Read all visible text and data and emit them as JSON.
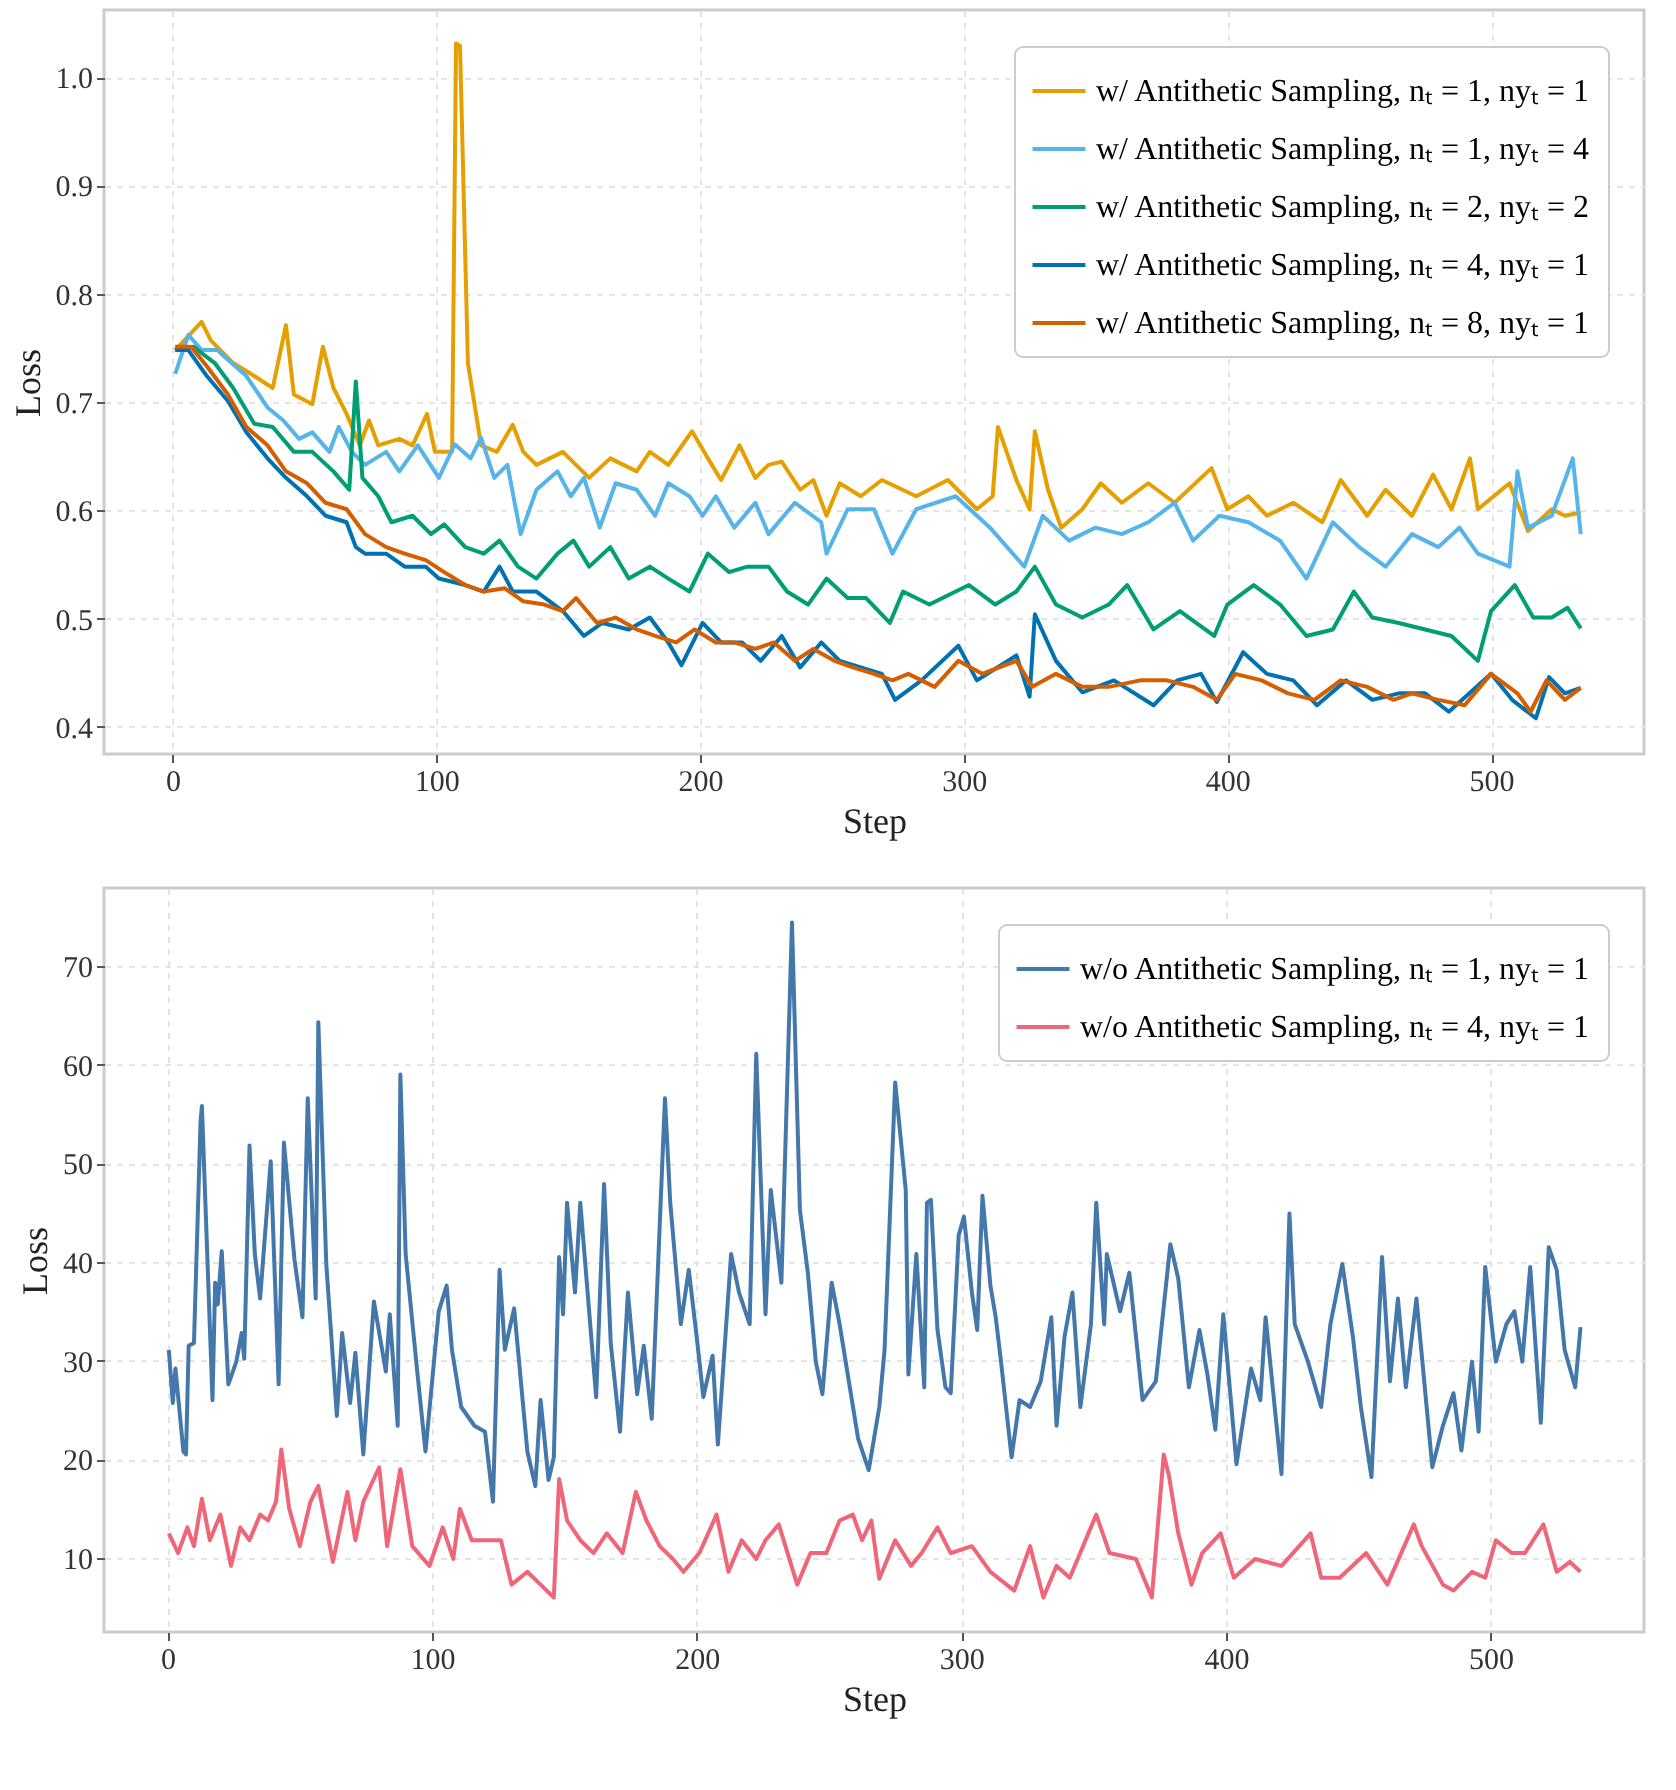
{
  "chart_data": [
    {
      "type": "line",
      "xlabel": "Step",
      "ylabel": "Loss",
      "xlim": [
        -26,
        558
      ],
      "ylim": [
        0.375,
        1.062
      ],
      "xticks": [
        0,
        100,
        200,
        300,
        400,
        500
      ],
      "yticks": [
        0.4,
        0.5,
        0.6,
        0.7,
        0.8,
        0.9,
        {
          "value": 1,
          "label": "1.0"
        }
      ],
      "grid": true,
      "legend": "top right",
      "marker": "none",
      "line_style": "solid",
      "series": [
        {
          "name": "w/ Antithetic Sampling, nₜ = 1, nyₜ = 1",
          "color": "#e69f00",
          "x": [
            1,
            11,
            14.5,
            23,
            31,
            38,
            43,
            46,
            53,
            57,
            61,
            66,
            71,
            74.5,
            78,
            86,
            91,
            96.5,
            99.5,
            106,
            107.5,
            109,
            112,
            117,
            123,
            129,
            133,
            138,
            148,
            158,
            166,
            176,
            181,
            188,
            197,
            203,
            208,
            215,
            221,
            226,
            231,
            238,
            243,
            248,
            253,
            261,
            269,
            282,
            294,
            305,
            311,
            313,
            320,
            325,
            327,
            332,
            337,
            345,
            352,
            360,
            370,
            380,
            390,
            394,
            400,
            408,
            415,
            425,
            436,
            443,
            453,
            460,
            470,
            478,
            485,
            492,
            495,
            507,
            514,
            523,
            528,
            534
          ],
          "values": [
            0.748,
            0.774,
            0.757,
            0.736,
            0.724,
            0.713,
            0.771,
            0.707,
            0.698,
            0.751,
            0.713,
            0.689,
            0.66,
            0.683,
            0.66,
            0.666,
            0.66,
            0.689,
            0.654,
            0.654,
            1.031,
            1.029,
            0.736,
            0.66,
            0.654,
            0.679,
            0.654,
            0.642,
            0.654,
            0.63,
            0.648,
            0.636,
            0.654,
            0.642,
            0.673,
            0.648,
            0.628,
            0.66,
            0.63,
            0.642,
            0.645,
            0.619,
            0.628,
            0.595,
            0.625,
            0.613,
            0.628,
            0.613,
            0.628,
            0.601,
            0.613,
            0.677,
            0.628,
            0.601,
            0.673,
            0.619,
            0.584,
            0.601,
            0.625,
            0.607,
            0.625,
            0.607,
            0.63,
            0.639,
            0.601,
            0.613,
            0.595,
            0.607,
            0.589,
            0.628,
            0.595,
            0.619,
            0.595,
            0.633,
            0.601,
            0.648,
            0.601,
            0.625,
            0.581,
            0.601,
            0.595,
            0.598
          ]
        },
        {
          "name": "w/ Antithetic Sampling, nₜ = 1, nyₜ = 4",
          "color": "#56b4e9",
          "x": [
            1,
            6,
            11,
            17,
            21,
            28,
            36,
            42,
            48,
            53,
            59.5,
            63,
            68,
            73,
            81,
            86,
            93,
            101,
            107,
            113,
            117,
            122,
            127,
            132,
            138,
            146,
            151,
            156,
            162,
            168,
            176,
            183,
            188,
            196,
            201,
            206,
            213,
            221,
            226,
            236,
            246,
            248,
            256,
            266,
            273,
            282,
            297,
            310,
            323,
            330,
            340,
            350,
            360,
            370,
            380,
            387,
            397,
            408,
            420,
            430,
            440,
            450,
            460,
            470,
            480,
            488,
            495,
            507,
            510,
            514,
            523,
            531,
            534
          ],
          "values": [
            0.726,
            0.762,
            0.748,
            0.748,
            0.739,
            0.724,
            0.695,
            0.683,
            0.666,
            0.672,
            0.654,
            0.677,
            0.654,
            0.642,
            0.654,
            0.636,
            0.66,
            0.63,
            0.661,
            0.648,
            0.667,
            0.63,
            0.642,
            0.578,
            0.619,
            0.636,
            0.613,
            0.63,
            0.584,
            0.625,
            0.619,
            0.595,
            0.625,
            0.613,
            0.595,
            0.613,
            0.584,
            0.607,
            0.578,
            0.607,
            0.589,
            0.56,
            0.601,
            0.601,
            0.56,
            0.601,
            0.613,
            0.584,
            0.548,
            0.595,
            0.572,
            0.584,
            0.578,
            0.589,
            0.607,
            0.572,
            0.595,
            0.589,
            0.572,
            0.537,
            0.589,
            0.566,
            0.548,
            0.578,
            0.566,
            0.584,
            0.56,
            0.548,
            0.636,
            0.584,
            0.595,
            0.648,
            0.578
          ]
        },
        {
          "name": "w/ Antithetic Sampling, nₜ = 2, nyₜ = 2",
          "color": "#009e73",
          "x": [
            1,
            8,
            16,
            23,
            31,
            38,
            46,
            53,
            61,
            67,
            69.5,
            72,
            78,
            83,
            91,
            98,
            103,
            111,
            118,
            124,
            131,
            138,
            146,
            152,
            158,
            166,
            173,
            181,
            188,
            196,
            203,
            211,
            218,
            226,
            233,
            241,
            248,
            256,
            263,
            272,
            277,
            287,
            302,
            312,
            320,
            327,
            335,
            345,
            355,
            362,
            372,
            382,
            395,
            400,
            410,
            420,
            430,
            440,
            448,
            455,
            465,
            475,
            485,
            495,
            500,
            509,
            516,
            523,
            529,
            534
          ],
          "values": [
            0.748,
            0.751,
            0.736,
            0.713,
            0.68,
            0.677,
            0.654,
            0.654,
            0.636,
            0.619,
            0.719,
            0.63,
            0.613,
            0.589,
            0.595,
            0.578,
            0.587,
            0.566,
            0.56,
            0.572,
            0.548,
            0.537,
            0.56,
            0.572,
            0.548,
            0.566,
            0.537,
            0.548,
            0.537,
            0.525,
            0.56,
            0.543,
            0.548,
            0.548,
            0.525,
            0.513,
            0.537,
            0.519,
            0.519,
            0.496,
            0.525,
            0.513,
            0.531,
            0.513,
            0.525,
            0.548,
            0.513,
            0.501,
            0.513,
            0.531,
            0.49,
            0.507,
            0.484,
            0.513,
            0.531,
            0.513,
            0.484,
            0.49,
            0.525,
            0.501,
            0.496,
            0.49,
            0.484,
            0.461,
            0.507,
            0.531,
            0.501,
            0.501,
            0.51,
            0.491
          ]
        },
        {
          "name": "w/ Antithetic Sampling, nₜ = 4, nyₜ = 1",
          "color": "#0072b2",
          "x": [
            1,
            6,
            13,
            21,
            28,
            36,
            43,
            51,
            58,
            66,
            69.5,
            73,
            81,
            88,
            96,
            101,
            111,
            118,
            124,
            129,
            138,
            148,
            156,
            163,
            173,
            181,
            188,
            193,
            201,
            208,
            216,
            223,
            231,
            238,
            246,
            253,
            261,
            269,
            274,
            284,
            298,
            305,
            320,
            325,
            327,
            335,
            345,
            357,
            372,
            381,
            390,
            396,
            406,
            415,
            425,
            434,
            445,
            455,
            465,
            475,
            484,
            500,
            508,
            517,
            522,
            528,
            534
          ],
          "values": [
            0.748,
            0.748,
            0.724,
            0.701,
            0.672,
            0.648,
            0.63,
            0.613,
            0.595,
            0.589,
            0.566,
            0.56,
            0.56,
            0.548,
            0.548,
            0.537,
            0.531,
            0.525,
            0.548,
            0.525,
            0.525,
            0.507,
            0.484,
            0.496,
            0.49,
            0.501,
            0.478,
            0.457,
            0.496,
            0.478,
            0.478,
            0.461,
            0.484,
            0.455,
            0.478,
            0.461,
            0.455,
            0.449,
            0.425,
            0.443,
            0.475,
            0.443,
            0.466,
            0.428,
            0.504,
            0.461,
            0.432,
            0.443,
            0.42,
            0.443,
            0.449,
            0.423,
            0.469,
            0.449,
            0.443,
            0.42,
            0.443,
            0.425,
            0.431,
            0.431,
            0.414,
            0.449,
            0.425,
            0.408,
            0.446,
            0.431,
            0.436
          ]
        },
        {
          "name": "w/ Antithetic Sampling, nₜ = 8, nyₜ = 1",
          "color": "#d55e00",
          "x": [
            1,
            7,
            13,
            21,
            28,
            36,
            43,
            51,
            58,
            66,
            73,
            81,
            88,
            96,
            103,
            111,
            118,
            126,
            133,
            141,
            148,
            153,
            161,
            168,
            176,
            183,
            191,
            198,
            206,
            213,
            221,
            228,
            236,
            243,
            251,
            258,
            266,
            273,
            279,
            289,
            298,
            307,
            320,
            326,
            335,
            345,
            355,
            367,
            377,
            387,
            396,
            403,
            413,
            423,
            433,
            443,
            453,
            463,
            470,
            480,
            490,
            500,
            510,
            515,
            521,
            528,
            534
          ],
          "values": [
            0.751,
            0.751,
            0.733,
            0.707,
            0.677,
            0.66,
            0.636,
            0.625,
            0.607,
            0.601,
            0.578,
            0.566,
            0.56,
            0.554,
            0.543,
            0.531,
            0.525,
            0.528,
            0.516,
            0.513,
            0.507,
            0.519,
            0.496,
            0.501,
            0.49,
            0.484,
            0.478,
            0.49,
            0.478,
            0.478,
            0.472,
            0.478,
            0.461,
            0.472,
            0.461,
            0.455,
            0.449,
            0.443,
            0.449,
            0.437,
            0.461,
            0.449,
            0.461,
            0.437,
            0.449,
            0.437,
            0.437,
            0.443,
            0.443,
            0.437,
            0.425,
            0.449,
            0.443,
            0.431,
            0.425,
            0.443,
            0.437,
            0.425,
            0.431,
            0.425,
            0.42,
            0.449,
            0.431,
            0.414,
            0.443,
            0.425,
            0.436
          ]
        }
      ]
    },
    {
      "type": "line",
      "xlabel": "Step",
      "ylabel": "Loss",
      "xlim": [
        -24,
        558
      ],
      "ylim": [
        2.5,
        77.9
      ],
      "xticks": [
        0,
        100,
        200,
        300,
        400,
        500
      ],
      "yticks": [
        10,
        20,
        30,
        40,
        50,
        60,
        70
      ],
      "grid": true,
      "legend": "top right",
      "marker": "none",
      "line_style": "solid",
      "series": [
        {
          "name": "w/o Antithetic Sampling, nₜ = 1, nyₜ = 1",
          "color": "#4477aa",
          "x": [
            0.5,
            2,
            3,
            6,
            7,
            8,
            10,
            12.5,
            13,
            17,
            18,
            19,
            20.5,
            23,
            26,
            28,
            29,
            31,
            33,
            35,
            39,
            42,
            44,
            48,
            51,
            53,
            56,
            57,
            60,
            64,
            66,
            69,
            71,
            74,
            78,
            82.5,
            84,
            87,
            88,
            90,
            94,
            97.5,
            102.5,
            105.5,
            107.5,
            111,
            116,
            120,
            123,
            125.5,
            127.5,
            131,
            136,
            139,
            141,
            144,
            146,
            148,
            149.5,
            151,
            154,
            156,
            162,
            165,
            167.5,
            171,
            174,
            177.5,
            180,
            183,
            188,
            190,
            194,
            197,
            200,
            202.5,
            206,
            208,
            213,
            216,
            220,
            222.5,
            226,
            228,
            232,
            236,
            239,
            242,
            245,
            247.5,
            251,
            254,
            257.5,
            261,
            265,
            269,
            271,
            275,
            279,
            280,
            283,
            286,
            287,
            288.5,
            291,
            294,
            296,
            299,
            301,
            304,
            306,
            308,
            311,
            313,
            315,
            319,
            322,
            326,
            330,
            334,
            336,
            339,
            342,
            345,
            349,
            351,
            354,
            355,
            360,
            363.5,
            368.5,
            373.5,
            379,
            382,
            386,
            390,
            393,
            396,
            399,
            404,
            409.5,
            413,
            415,
            421,
            424,
            426,
            431,
            436,
            439.5,
            444,
            448,
            451,
            455,
            459,
            462,
            465,
            468,
            472,
            478,
            482,
            486,
            489,
            493,
            495.5,
            498,
            502,
            506,
            509,
            512,
            515,
            519,
            522,
            525,
            528,
            532,
            534
          ],
          "values": [
            31.1,
            25.7,
            29.2,
            20.8,
            20.5,
            31.5,
            31.8,
            54.3,
            55.8,
            26.0,
            37.9,
            35.7,
            41.1,
            27.6,
            29.9,
            32.8,
            30.2,
            51.8,
            40.8,
            36.3,
            50.2,
            27.6,
            52.1,
            40.2,
            34.4,
            56.6,
            36.3,
            64.3,
            39.8,
            24.4,
            32.8,
            25.7,
            30.8,
            20.5,
            36.0,
            28.9,
            34.7,
            23.4,
            59.0,
            40.8,
            29.9,
            20.8,
            35.0,
            37.6,
            31.1,
            25.3,
            23.4,
            22.8,
            15.7,
            39.2,
            31.1,
            35.3,
            20.8,
            17.3,
            26.0,
            17.9,
            20.2,
            40.5,
            34.7,
            46.0,
            36.9,
            46.0,
            26.3,
            47.9,
            31.8,
            22.8,
            36.9,
            26.6,
            31.5,
            24.1,
            56.6,
            46.0,
            33.7,
            39.2,
            32.4,
            26.3,
            30.5,
            21.5,
            40.8,
            36.9,
            33.7,
            61.1,
            34.7,
            47.3,
            37.9,
            74.4,
            45.3,
            38.9,
            29.9,
            26.6,
            37.9,
            33.7,
            27.9,
            22.1,
            18.9,
            25.3,
            31.1,
            58.2,
            47.3,
            28.6,
            40.8,
            27.3,
            46.0,
            46.3,
            33.1,
            27.3,
            26.7,
            42.7,
            44.6,
            36.9,
            33.1,
            46.7,
            37.6,
            34.4,
            29.9,
            20.2,
            26.0,
            25.3,
            27.9,
            34.4,
            23.4,
            32.4,
            36.9,
            25.3,
            33.7,
            46.0,
            33.7,
            40.8,
            35.0,
            38.9,
            26.0,
            27.9,
            41.8,
            38.3,
            27.3,
            33.1,
            28.6,
            23.0,
            34.7,
            19.5,
            29.2,
            26.0,
            34.4,
            18.5,
            44.9,
            33.7,
            29.9,
            25.3,
            33.7,
            39.8,
            32.4,
            25.3,
            18.2,
            40.5,
            27.9,
            36.3,
            27.3,
            36.3,
            19.2,
            23.4,
            26.7,
            20.9,
            29.9,
            22.8,
            39.5,
            29.9,
            33.7,
            35.0,
            29.9,
            39.5,
            23.7,
            41.5,
            39.2,
            31.1,
            27.3,
            33.4
          ]
        },
        {
          "name": "w/o Antithetic Sampling, nₜ = 4, nyₜ = 1",
          "color": "#ee6677",
          "x": [
            0.5,
            4,
            7.5,
            10,
            13,
            16,
            20,
            24,
            27.5,
            31,
            35,
            38,
            41,
            43,
            46,
            50,
            54,
            57,
            62.5,
            68,
            71,
            74,
            80,
            83,
            88,
            92.5,
            99,
            104,
            108,
            110.5,
            115,
            120,
            126,
            130,
            136,
            141,
            146,
            148,
            151,
            156,
            161,
            166,
            172,
            177,
            181,
            186,
            191,
            195,
            201,
            207.5,
            212,
            217,
            222.5,
            226,
            231,
            238,
            243,
            249,
            254,
            259,
            262.5,
            266,
            269,
            275,
            281,
            285,
            291,
            296,
            304,
            311,
            320,
            326,
            331,
            336,
            341,
            351,
            356,
            366,
            372,
            376.5,
            378.5,
            382,
            387,
            391,
            398,
            403,
            411,
            421,
            432,
            436,
            443,
            453,
            461,
            471,
            474,
            482,
            486,
            493,
            498,
            502,
            508,
            513,
            520,
            525,
            530,
            534
          ],
          "values": [
            12.5,
            10.5,
            13.1,
            11.2,
            16.0,
            11.8,
            14.4,
            9.2,
            13.1,
            11.8,
            14.4,
            13.8,
            15.7,
            21.0,
            15.0,
            11.2,
            15.7,
            17.3,
            9.6,
            16.7,
            11.8,
            15.7,
            19.2,
            11.2,
            19.0,
            11.2,
            9.2,
            13.1,
            9.9,
            15.0,
            11.8,
            11.8,
            11.8,
            7.3,
            8.6,
            7.3,
            6.0,
            18.0,
            13.8,
            11.8,
            10.5,
            12.5,
            10.5,
            16.7,
            13.8,
            11.2,
            9.9,
            8.6,
            10.5,
            14.4,
            8.6,
            11.8,
            9.9,
            11.8,
            13.4,
            7.3,
            10.5,
            10.5,
            13.8,
            14.4,
            11.8,
            13.8,
            7.9,
            11.8,
            9.2,
            10.5,
            13.1,
            10.5,
            11.2,
            8.6,
            6.7,
            11.2,
            6.0,
            9.2,
            8.0,
            14.4,
            10.5,
            9.9,
            6.0,
            20.5,
            18.3,
            12.5,
            7.3,
            10.5,
            12.5,
            8.0,
            9.9,
            9.2,
            12.5,
            8.0,
            8.0,
            10.5,
            7.3,
            13.4,
            11.2,
            7.3,
            6.7,
            8.6,
            8.0,
            11.8,
            10.5,
            10.5,
            13.4,
            8.6,
            9.6,
            8.6
          ]
        }
      ]
    }
  ]
}
